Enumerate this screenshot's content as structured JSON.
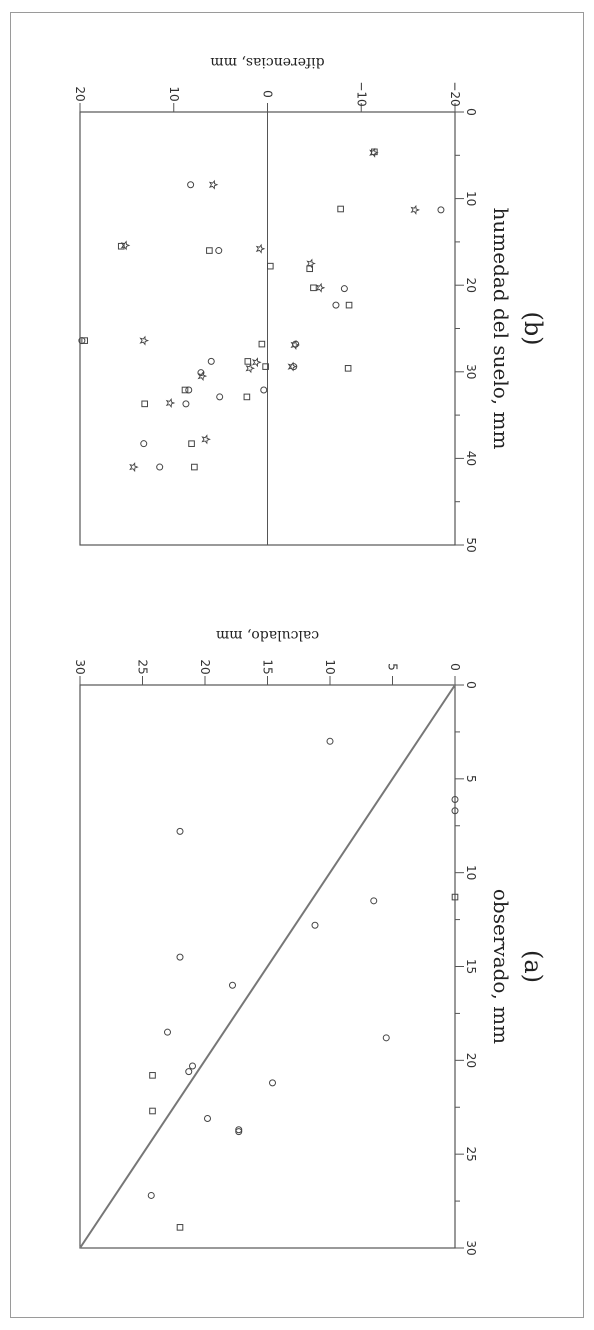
{
  "chart_data": [
    {
      "type": "scatter",
      "panel_label": "(a)",
      "xlabel": "observado, mm",
      "ylabel": "calculado, mm",
      "xlim": [
        0,
        30
      ],
      "ylim": [
        0,
        30
      ],
      "x_ticks": [
        0,
        5,
        10,
        15,
        20,
        25,
        30
      ],
      "y_ticks": [
        0,
        5,
        10,
        15,
        20,
        25,
        30
      ],
      "reference_line": "y = x (1:1)",
      "series": [
        {
          "marker": "circle",
          "points": [
            {
              "x": 3,
              "y": 10
            },
            {
              "x": 7.8,
              "y": 22
            },
            {
              "x": 11.5,
              "y": 6.5
            },
            {
              "x": 12.8,
              "y": 11.2
            },
            {
              "x": 14.5,
              "y": 22
            },
            {
              "x": 16,
              "y": 17.8
            },
            {
              "x": 18.5,
              "y": 23
            },
            {
              "x": 18.8,
              "y": 5.5
            },
            {
              "x": 20.3,
              "y": 21
            },
            {
              "x": 20.6,
              "y": 21.3
            },
            {
              "x": 21.2,
              "y": 14.6
            },
            {
              "x": 23.1,
              "y": 19.8
            },
            {
              "x": 23.7,
              "y": 17.3
            },
            {
              "x": 23.8,
              "y": 17.3
            },
            {
              "x": 27.2,
              "y": 24.3
            },
            {
              "x": 6.1,
              "y": 0
            },
            {
              "x": 6.7,
              "y": 0
            }
          ]
        },
        {
          "marker": "square",
          "points": [
            {
              "x": 11.3,
              "y": 0
            },
            {
              "x": 20.8,
              "y": 24.2
            },
            {
              "x": 22.7,
              "y": 24.2
            },
            {
              "x": 28.9,
              "y": 22
            }
          ]
        }
      ]
    },
    {
      "type": "scatter",
      "panel_label": "(b)",
      "xlabel": "humedad del suelo, mm",
      "ylabel": "diferencias, mm",
      "xlim": [
        0,
        50
      ],
      "ylim": [
        -20,
        20
      ],
      "x_ticks": [
        0,
        10,
        20,
        30,
        40,
        50
      ],
      "y_ticks": [
        -20,
        -10,
        0,
        10,
        20
      ],
      "reference_line": "y = 0",
      "series": [
        {
          "marker": "circle",
          "points": [
            {
              "x": 8.4,
              "y": 8.2
            },
            {
              "x": 11.3,
              "y": -18.5
            },
            {
              "x": 16,
              "y": 5.2
            },
            {
              "x": 20.4,
              "y": -8.2
            },
            {
              "x": 22.3,
              "y": -7.3
            },
            {
              "x": 26.4,
              "y": 19.8
            },
            {
              "x": 26.8,
              "y": -3
            },
            {
              "x": 28.8,
              "y": 6
            },
            {
              "x": 29.4,
              "y": -2.8
            },
            {
              "x": 30.1,
              "y": 7.1
            },
            {
              "x": 32.1,
              "y": 8.4
            },
            {
              "x": 32.9,
              "y": 5.1
            },
            {
              "x": 33.7,
              "y": 8.7
            },
            {
              "x": 38.3,
              "y": 13.2
            },
            {
              "x": 41,
              "y": 11.5
            },
            {
              "x": 32.1,
              "y": 0.4
            }
          ]
        },
        {
          "marker": "square",
          "points": [
            {
              "x": 4.6,
              "y": -11.4
            },
            {
              "x": 11.2,
              "y": -7.8
            },
            {
              "x": 15.5,
              "y": 15.6
            },
            {
              "x": 16,
              "y": 6.2
            },
            {
              "x": 17.8,
              "y": -0.3
            },
            {
              "x": 18.1,
              "y": -4.5
            },
            {
              "x": 20.3,
              "y": -4.9
            },
            {
              "x": 22.3,
              "y": -8.7
            },
            {
              "x": 26.4,
              "y": 19.5
            },
            {
              "x": 26.8,
              "y": 0.6
            },
            {
              "x": 28.8,
              "y": 2.1
            },
            {
              "x": 29.4,
              "y": 0.2
            },
            {
              "x": 29.6,
              "y": -8.6
            },
            {
              "x": 32.1,
              "y": 8.8
            },
            {
              "x": 32.9,
              "y": 2.2
            },
            {
              "x": 33.7,
              "y": 13.1
            },
            {
              "x": 38.3,
              "y": 8.1
            },
            {
              "x": 41,
              "y": 7.8
            }
          ]
        },
        {
          "marker": "star",
          "points": [
            {
              "x": 4.7,
              "y": -11.3
            },
            {
              "x": 8.4,
              "y": 5.8
            },
            {
              "x": 11.3,
              "y": -15.7
            },
            {
              "x": 15.4,
              "y": 15.2
            },
            {
              "x": 15.8,
              "y": 0.8
            },
            {
              "x": 17.5,
              "y": -4.6
            },
            {
              "x": 20.3,
              "y": -5.6
            },
            {
              "x": 26.4,
              "y": 13.2
            },
            {
              "x": 26.9,
              "y": -2.9
            },
            {
              "x": 28.9,
              "y": 1.2
            },
            {
              "x": 29.4,
              "y": -2.6
            },
            {
              "x": 29.6,
              "y": 1.9
            },
            {
              "x": 30.5,
              "y": 7
            },
            {
              "x": 33.6,
              "y": 10.4
            },
            {
              "x": 37.8,
              "y": 6.6
            },
            {
              "x": 41,
              "y": 14.3
            }
          ]
        }
      ]
    }
  ]
}
